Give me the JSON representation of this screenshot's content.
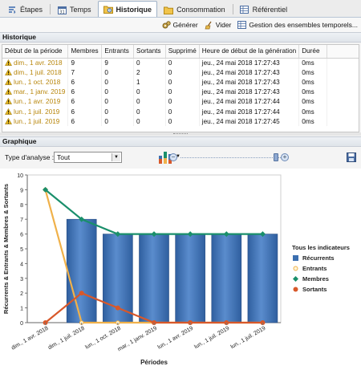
{
  "tabs": [
    {
      "label": "Étapes",
      "icon": "steps-icon",
      "active": false
    },
    {
      "label": "Temps",
      "icon": "calendar-icon",
      "active": false
    },
    {
      "label": "Historique",
      "icon": "folder-history-icon",
      "active": true
    },
    {
      "label": "Consommation",
      "icon": "folder-icon",
      "active": false
    },
    {
      "label": "Référentiel",
      "icon": "table-icon",
      "active": false
    }
  ],
  "toolbar": {
    "generate": "Générer",
    "clear": "Vider",
    "manage": "Gestion des ensembles temporels..."
  },
  "historique": {
    "title": "Historique",
    "columns": [
      "Début de la période",
      "Membres",
      "Entrants",
      "Sortants",
      "Supprimé",
      "Heure de début de la génération",
      "Durée"
    ],
    "rows": [
      [
        "dim., 1 avr. 2018",
        "9",
        "9",
        "0",
        "0",
        "jeu., 24 mai 2018 17:27:43",
        "0ms"
      ],
      [
        "dim., 1 juil. 2018",
        "7",
        "0",
        "2",
        "0",
        "jeu., 24 mai 2018 17:27:43",
        "0ms"
      ],
      [
        "lun., 1 oct. 2018",
        "6",
        "0",
        "1",
        "0",
        "jeu., 24 mai 2018 17:27:43",
        "0ms"
      ],
      [
        "mar., 1 janv. 2019",
        "6",
        "0",
        "0",
        "0",
        "jeu., 24 mai 2018 17:27:43",
        "0ms"
      ],
      [
        "lun., 1 avr. 2019",
        "6",
        "0",
        "0",
        "0",
        "jeu., 24 mai 2018 17:27:44",
        "0ms"
      ],
      [
        "lun., 1 juil. 2019",
        "6",
        "0",
        "0",
        "0",
        "jeu., 24 mai 2018 17:27:44",
        "0ms"
      ],
      [
        "lun., 1 juil. 2019",
        "6",
        "0",
        "0",
        "0",
        "jeu., 24 mai 2018 17:27:45",
        "0ms"
      ]
    ]
  },
  "graphique": {
    "title": "Graphique",
    "analysis_label": "Type d'analyse :",
    "analysis_value": "Tout"
  },
  "colors": {
    "recurrents": "#3c6fb0",
    "entrants": "#f0b14a",
    "membres": "#1a8f6b",
    "sortants": "#d8582a",
    "warning": "#e8b923"
  },
  "chart_data": {
    "type": "bar",
    "categories": [
      "dim., 1 avr. 2018",
      "dim., 1 juil. 2018",
      "lun., 1 oct. 2018",
      "mar., 1 janv. 2019",
      "lun., 1 avr. 2019",
      "lun., 1 juil. 2019",
      "lun., 1 juil. 2019"
    ],
    "xlabel": "Périodes",
    "ylabel": "Récurrents & Entrants & Membres & Sortants",
    "ylim": [
      0,
      10
    ],
    "yticks": [
      "0",
      "1",
      "2",
      "3",
      "4",
      "5",
      "6",
      "7",
      "8",
      "9",
      "10"
    ],
    "legend_title": "Tous les indicateurs",
    "legend_position": "right",
    "series": [
      {
        "name": "Récurrents",
        "kind": "bar",
        "values": [
          0,
          7,
          6,
          6,
          6,
          6,
          6
        ]
      },
      {
        "name": "Entrants",
        "kind": "line",
        "values": [
          9,
          0,
          0,
          0,
          0,
          0,
          0
        ]
      },
      {
        "name": "Membres",
        "kind": "line",
        "values": [
          9,
          7,
          6,
          6,
          6,
          6,
          6
        ]
      },
      {
        "name": "Sortants",
        "kind": "line",
        "values": [
          0,
          2,
          1,
          0,
          0,
          0,
          0
        ]
      }
    ]
  }
}
